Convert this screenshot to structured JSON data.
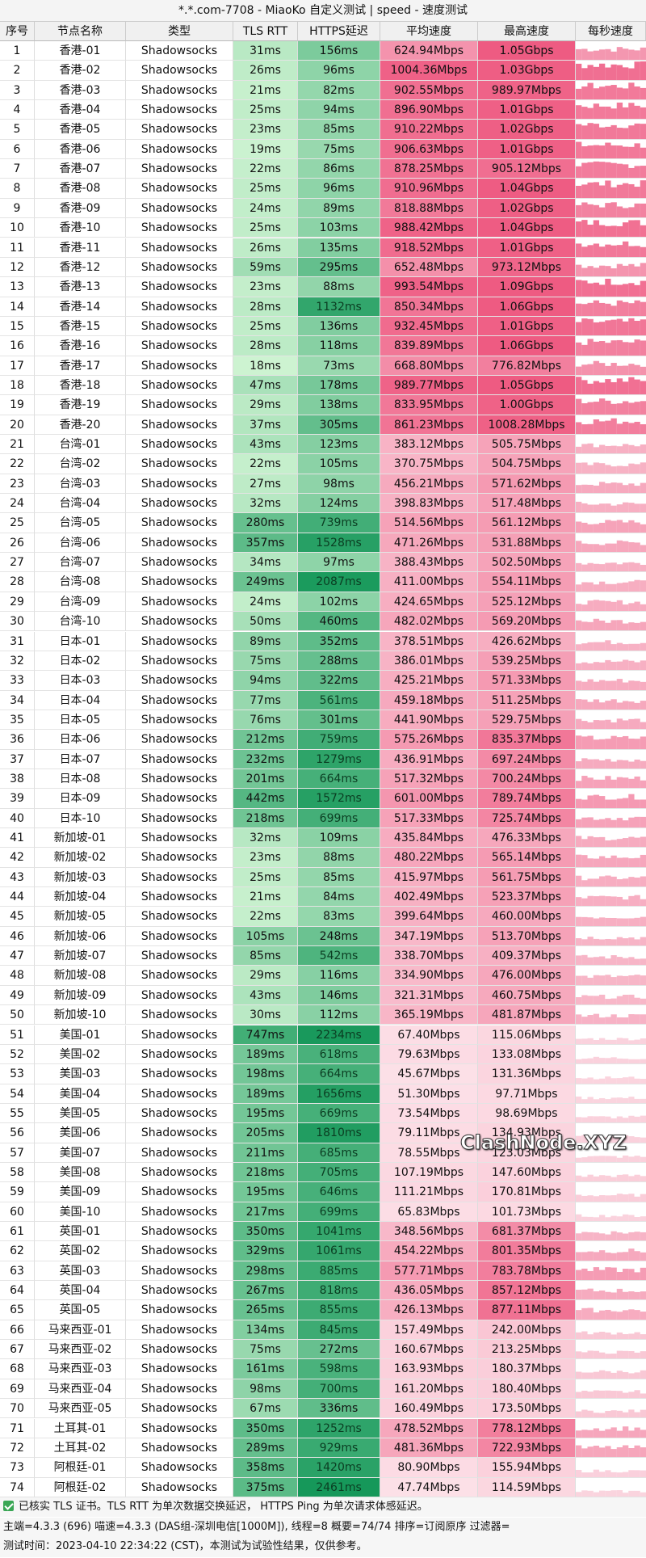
{
  "title": "*.*.com-7708 - MiaoKo 自定义测试 | speed - 速度测试",
  "table": {
    "columns": [
      "序号",
      "节点名称",
      "类型",
      "TLS RTT",
      "HTTPS延迟",
      "平均速度",
      "最高速度",
      "每秒速度"
    ],
    "rows": [
      [
        "1",
        "香港-01",
        "Shadowsocks",
        "31ms",
        "156ms",
        "624.94Mbps",
        "1.05Gbps"
      ],
      [
        "2",
        "香港-02",
        "Shadowsocks",
        "26ms",
        "96ms",
        "1004.36Mbps",
        "1.03Gbps"
      ],
      [
        "3",
        "香港-03",
        "Shadowsocks",
        "21ms",
        "82ms",
        "902.55Mbps",
        "989.97Mbps"
      ],
      [
        "4",
        "香港-04",
        "Shadowsocks",
        "25ms",
        "94ms",
        "896.90Mbps",
        "1.01Gbps"
      ],
      [
        "5",
        "香港-05",
        "Shadowsocks",
        "23ms",
        "85ms",
        "910.22Mbps",
        "1.02Gbps"
      ],
      [
        "6",
        "香港-06",
        "Shadowsocks",
        "19ms",
        "75ms",
        "906.63Mbps",
        "1.01Gbps"
      ],
      [
        "7",
        "香港-07",
        "Shadowsocks",
        "22ms",
        "86ms",
        "878.25Mbps",
        "905.12Mbps"
      ],
      [
        "8",
        "香港-08",
        "Shadowsocks",
        "25ms",
        "96ms",
        "910.96Mbps",
        "1.04Gbps"
      ],
      [
        "9",
        "香港-09",
        "Shadowsocks",
        "24ms",
        "89ms",
        "818.88Mbps",
        "1.02Gbps"
      ],
      [
        "10",
        "香港-10",
        "Shadowsocks",
        "25ms",
        "103ms",
        "988.42Mbps",
        "1.04Gbps"
      ],
      [
        "11",
        "香港-11",
        "Shadowsocks",
        "26ms",
        "135ms",
        "918.52Mbps",
        "1.01Gbps"
      ],
      [
        "12",
        "香港-12",
        "Shadowsocks",
        "59ms",
        "295ms",
        "652.48Mbps",
        "973.12Mbps"
      ],
      [
        "13",
        "香港-13",
        "Shadowsocks",
        "23ms",
        "88ms",
        "993.54Mbps",
        "1.09Gbps"
      ],
      [
        "14",
        "香港-14",
        "Shadowsocks",
        "28ms",
        "1132ms",
        "850.34Mbps",
        "1.06Gbps"
      ],
      [
        "15",
        "香港-15",
        "Shadowsocks",
        "25ms",
        "136ms",
        "932.45Mbps",
        "1.01Gbps"
      ],
      [
        "16",
        "香港-16",
        "Shadowsocks",
        "28ms",
        "118ms",
        "839.89Mbps",
        "1.06Gbps"
      ],
      [
        "17",
        "香港-17",
        "Shadowsocks",
        "18ms",
        "73ms",
        "668.80Mbps",
        "776.82Mbps"
      ],
      [
        "18",
        "香港-18",
        "Shadowsocks",
        "47ms",
        "178ms",
        "989.77Mbps",
        "1.05Gbps"
      ],
      [
        "19",
        "香港-19",
        "Shadowsocks",
        "29ms",
        "138ms",
        "833.95Mbps",
        "1.00Gbps"
      ],
      [
        "20",
        "香港-20",
        "Shadowsocks",
        "37ms",
        "305ms",
        "861.23Mbps",
        "1008.28Mbps"
      ],
      [
        "21",
        "台湾-01",
        "Shadowsocks",
        "43ms",
        "123ms",
        "383.12Mbps",
        "505.75Mbps"
      ],
      [
        "22",
        "台湾-02",
        "Shadowsocks",
        "22ms",
        "105ms",
        "370.75Mbps",
        "504.75Mbps"
      ],
      [
        "23",
        "台湾-03",
        "Shadowsocks",
        "27ms",
        "98ms",
        "456.21Mbps",
        "571.62Mbps"
      ],
      [
        "24",
        "台湾-04",
        "Shadowsocks",
        "32ms",
        "124ms",
        "398.83Mbps",
        "517.48Mbps"
      ],
      [
        "25",
        "台湾-05",
        "Shadowsocks",
        "280ms",
        "739ms",
        "514.56Mbps",
        "561.12Mbps"
      ],
      [
        "26",
        "台湾-06",
        "Shadowsocks",
        "357ms",
        "1528ms",
        "471.26Mbps",
        "531.88Mbps"
      ],
      [
        "27",
        "台湾-07",
        "Shadowsocks",
        "34ms",
        "97ms",
        "388.43Mbps",
        "502.50Mbps"
      ],
      [
        "28",
        "台湾-08",
        "Shadowsocks",
        "249ms",
        "2087ms",
        "411.00Mbps",
        "554.11Mbps"
      ],
      [
        "29",
        "台湾-09",
        "Shadowsocks",
        "24ms",
        "102ms",
        "424.65Mbps",
        "525.12Mbps"
      ],
      [
        "30",
        "台湾-10",
        "Shadowsocks",
        "50ms",
        "460ms",
        "482.02Mbps",
        "569.20Mbps"
      ],
      [
        "31",
        "日本-01",
        "Shadowsocks",
        "89ms",
        "352ms",
        "378.51Mbps",
        "426.62Mbps"
      ],
      [
        "32",
        "日本-02",
        "Shadowsocks",
        "75ms",
        "288ms",
        "386.01Mbps",
        "539.25Mbps"
      ],
      [
        "33",
        "日本-03",
        "Shadowsocks",
        "94ms",
        "322ms",
        "425.21Mbps",
        "571.33Mbps"
      ],
      [
        "34",
        "日本-04",
        "Shadowsocks",
        "77ms",
        "561ms",
        "459.18Mbps",
        "511.25Mbps"
      ],
      [
        "35",
        "日本-05",
        "Shadowsocks",
        "76ms",
        "301ms",
        "441.90Mbps",
        "529.75Mbps"
      ],
      [
        "36",
        "日本-06",
        "Shadowsocks",
        "212ms",
        "759ms",
        "575.26Mbps",
        "835.37Mbps"
      ],
      [
        "37",
        "日本-07",
        "Shadowsocks",
        "232ms",
        "1279ms",
        "436.91Mbps",
        "697.24Mbps"
      ],
      [
        "38",
        "日本-08",
        "Shadowsocks",
        "201ms",
        "664ms",
        "517.32Mbps",
        "700.24Mbps"
      ],
      [
        "39",
        "日本-09",
        "Shadowsocks",
        "442ms",
        "1572ms",
        "601.00Mbps",
        "789.74Mbps"
      ],
      [
        "40",
        "日本-10",
        "Shadowsocks",
        "218ms",
        "699ms",
        "517.33Mbps",
        "725.74Mbps"
      ],
      [
        "41",
        "新加坡-01",
        "Shadowsocks",
        "32ms",
        "109ms",
        "435.84Mbps",
        "476.33Mbps"
      ],
      [
        "42",
        "新加坡-02",
        "Shadowsocks",
        "23ms",
        "88ms",
        "480.22Mbps",
        "565.14Mbps"
      ],
      [
        "43",
        "新加坡-03",
        "Shadowsocks",
        "25ms",
        "85ms",
        "415.97Mbps",
        "561.75Mbps"
      ],
      [
        "44",
        "新加坡-04",
        "Shadowsocks",
        "21ms",
        "84ms",
        "402.49Mbps",
        "523.37Mbps"
      ],
      [
        "45",
        "新加坡-05",
        "Shadowsocks",
        "22ms",
        "83ms",
        "399.64Mbps",
        "460.00Mbps"
      ],
      [
        "46",
        "新加坡-06",
        "Shadowsocks",
        "105ms",
        "248ms",
        "347.19Mbps",
        "513.70Mbps"
      ],
      [
        "47",
        "新加坡-07",
        "Shadowsocks",
        "85ms",
        "542ms",
        "338.70Mbps",
        "409.37Mbps"
      ],
      [
        "48",
        "新加坡-08",
        "Shadowsocks",
        "29ms",
        "116ms",
        "334.90Mbps",
        "476.00Mbps"
      ],
      [
        "49",
        "新加坡-09",
        "Shadowsocks",
        "43ms",
        "146ms",
        "321.31Mbps",
        "460.75Mbps"
      ],
      [
        "50",
        "新加坡-10",
        "Shadowsocks",
        "30ms",
        "112ms",
        "365.19Mbps",
        "481.87Mbps"
      ],
      [
        "51",
        "美国-01",
        "Shadowsocks",
        "747ms",
        "2234ms",
        "67.40Mbps",
        "115.06Mbps"
      ],
      [
        "52",
        "美国-02",
        "Shadowsocks",
        "189ms",
        "618ms",
        "79.63Mbps",
        "133.08Mbps"
      ],
      [
        "53",
        "美国-03",
        "Shadowsocks",
        "198ms",
        "664ms",
        "45.67Mbps",
        "131.36Mbps"
      ],
      [
        "54",
        "美国-04",
        "Shadowsocks",
        "189ms",
        "1656ms",
        "51.30Mbps",
        "97.71Mbps"
      ],
      [
        "55",
        "美国-05",
        "Shadowsocks",
        "195ms",
        "669ms",
        "73.54Mbps",
        "98.69Mbps"
      ],
      [
        "56",
        "美国-06",
        "Shadowsocks",
        "205ms",
        "1810ms",
        "79.11Mbps",
        "134.93Mbps"
      ],
      [
        "57",
        "美国-07",
        "Shadowsocks",
        "211ms",
        "685ms",
        "78.55Mbps",
        "123.03Mbps"
      ],
      [
        "58",
        "美国-08",
        "Shadowsocks",
        "218ms",
        "705ms",
        "107.19Mbps",
        "147.60Mbps"
      ],
      [
        "59",
        "美国-09",
        "Shadowsocks",
        "195ms",
        "646ms",
        "111.21Mbps",
        "170.81Mbps"
      ],
      [
        "60",
        "美国-10",
        "Shadowsocks",
        "217ms",
        "699ms",
        "65.83Mbps",
        "101.73Mbps"
      ],
      [
        "61",
        "英国-01",
        "Shadowsocks",
        "350ms",
        "1041ms",
        "348.56Mbps",
        "681.37Mbps"
      ],
      [
        "62",
        "英国-02",
        "Shadowsocks",
        "329ms",
        "1061ms",
        "454.22Mbps",
        "801.35Mbps"
      ],
      [
        "63",
        "英国-03",
        "Shadowsocks",
        "298ms",
        "885ms",
        "577.71Mbps",
        "783.78Mbps"
      ],
      [
        "64",
        "英国-04",
        "Shadowsocks",
        "267ms",
        "818ms",
        "436.05Mbps",
        "857.12Mbps"
      ],
      [
        "65",
        "英国-05",
        "Shadowsocks",
        "265ms",
        "855ms",
        "426.13Mbps",
        "877.11Mbps"
      ],
      [
        "66",
        "马来西亚-01",
        "Shadowsocks",
        "134ms",
        "845ms",
        "157.49Mbps",
        "242.00Mbps"
      ],
      [
        "67",
        "马来西亚-02",
        "Shadowsocks",
        "75ms",
        "272ms",
        "160.67Mbps",
        "213.25Mbps"
      ],
      [
        "68",
        "马来西亚-03",
        "Shadowsocks",
        "161ms",
        "598ms",
        "163.93Mbps",
        "180.37Mbps"
      ],
      [
        "69",
        "马来西亚-04",
        "Shadowsocks",
        "98ms",
        "700ms",
        "161.20Mbps",
        "180.40Mbps"
      ],
      [
        "70",
        "马来西亚-05",
        "Shadowsocks",
        "67ms",
        "336ms",
        "160.49Mbps",
        "173.50Mbps"
      ],
      [
        "71",
        "土耳其-01",
        "Shadowsocks",
        "350ms",
        "1252ms",
        "478.52Mbps",
        "778.12Mbps"
      ],
      [
        "72",
        "土耳其-02",
        "Shadowsocks",
        "289ms",
        "929ms",
        "481.36Mbps",
        "722.93Mbps"
      ],
      [
        "73",
        "阿根廷-01",
        "Shadowsocks",
        "358ms",
        "1420ms",
        "80.90Mbps",
        "155.94Mbps"
      ],
      [
        "74",
        "阿根廷-02",
        "Shadowsocks",
        "375ms",
        "2461ms",
        "47.74Mbps",
        "114.59Mbps"
      ]
    ]
  },
  "watermark": "ClashNode.XYZ",
  "footer": [
    "已核实 TLS 证书。TLS RTT 为单次数据交换延迟， HTTPS Ping 为单次请求体感延迟。",
    "主端=4.3.3 (696) 喵速=4.3.3 (DAS组-深圳电信[1000M]), 线程=8 概要=74/74 排序=订阅原序 过滤器=",
    "测试时间：2023-04-10 22:34:22 (CST)，本测试为试验性结果，仅供参考。"
  ]
}
